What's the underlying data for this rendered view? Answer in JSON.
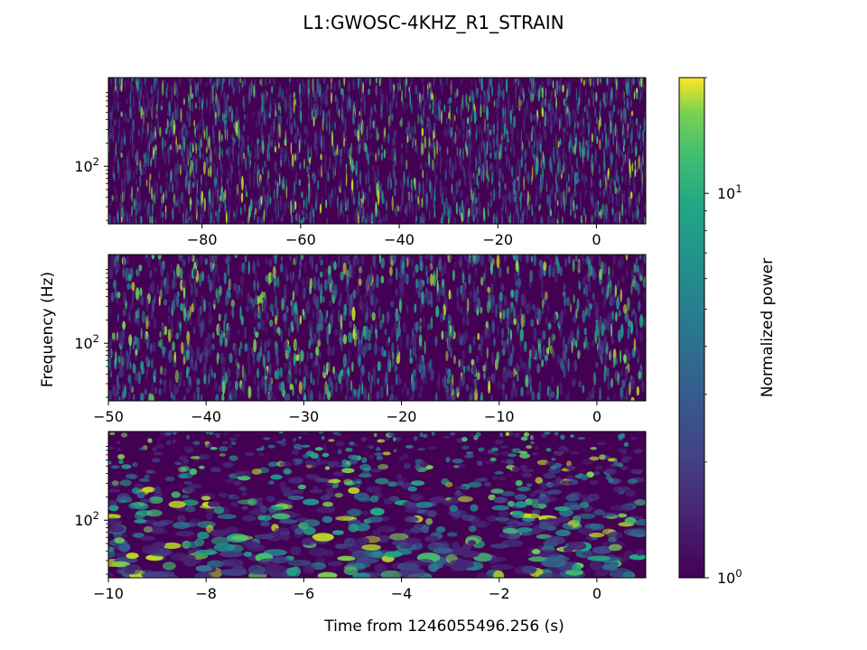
{
  "title": "L1:GWOSC-4KHZ_R1_STRAIN",
  "chart_data": [
    {
      "type": "heatmap",
      "panel": "top",
      "xlim": [
        -99,
        10
      ],
      "x_ticks": [
        -80,
        -60,
        -40,
        -20,
        0
      ],
      "x_tick_labels": [
        "−80",
        "−60",
        "−40",
        "−20",
        "0"
      ],
      "y_scale": "log",
      "ylim": [
        18,
        1400
      ],
      "y_ticks": [
        100
      ],
      "y_tick_labels": [
        "10^2"
      ],
      "colormap": "viridis",
      "description_of_texture": "narrow vertical streaks, dense high-frequency noise"
    },
    {
      "type": "heatmap",
      "panel": "middle",
      "xlim": [
        -50,
        5
      ],
      "x_ticks": [
        -50,
        -40,
        -30,
        -20,
        -10,
        0
      ],
      "x_tick_labels": [
        "−50",
        "−40",
        "−30",
        "−20",
        "−10",
        "0"
      ],
      "y_scale": "log",
      "ylim": [
        18,
        1400
      ],
      "y_ticks": [
        100
      ],
      "y_tick_labels": [
        "10^2"
      ],
      "ylabel": "Frequency (Hz)",
      "colormap": "viridis"
    },
    {
      "type": "heatmap",
      "panel": "bottom",
      "xlim": [
        -10,
        1
      ],
      "x_ticks": [
        -10,
        -8,
        -6,
        -4,
        -2,
        0
      ],
      "x_tick_labels": [
        "−10",
        "−8",
        "−6",
        "−4",
        "−2",
        "0"
      ],
      "y_scale": "log",
      "ylim": [
        18,
        1400
      ],
      "y_ticks": [
        100
      ],
      "y_tick_labels": [
        "10^2"
      ],
      "xlabel": "Time from 1246055496.256 (s)",
      "colormap": "viridis"
    }
  ],
  "colorbar": {
    "label": "Normalized power",
    "scale": "log",
    "range": [
      1,
      20
    ],
    "tick_labels": [
      "10^0",
      "10^1"
    ],
    "colormap": "viridis"
  }
}
